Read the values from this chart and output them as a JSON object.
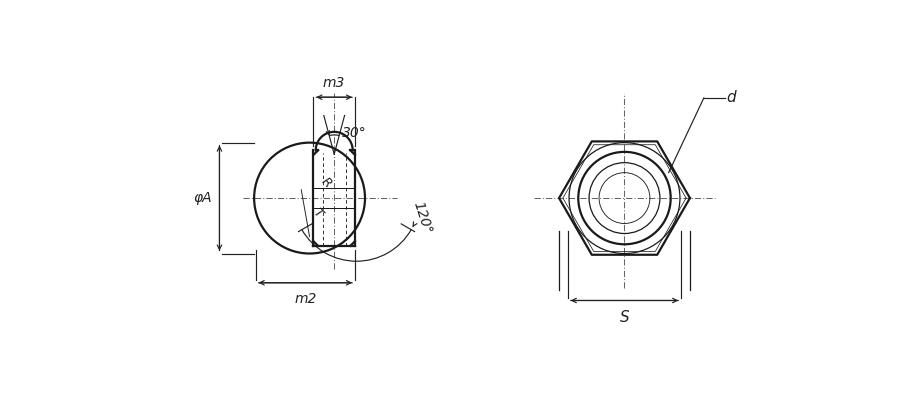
{
  "bg_color": "#ffffff",
  "line_color": "#1a1a1a",
  "dim_color": "#222222",
  "center_color": "#666666",
  "fig_width": 9.0,
  "fig_height": 3.93,
  "dpi": 100,
  "labels": {
    "m3": "m3",
    "m2": "m2",
    "phi_a": "φA",
    "angle30": "30°",
    "angle120": "120°",
    "R": "R",
    "T": "T",
    "d": "d",
    "S": "S"
  }
}
